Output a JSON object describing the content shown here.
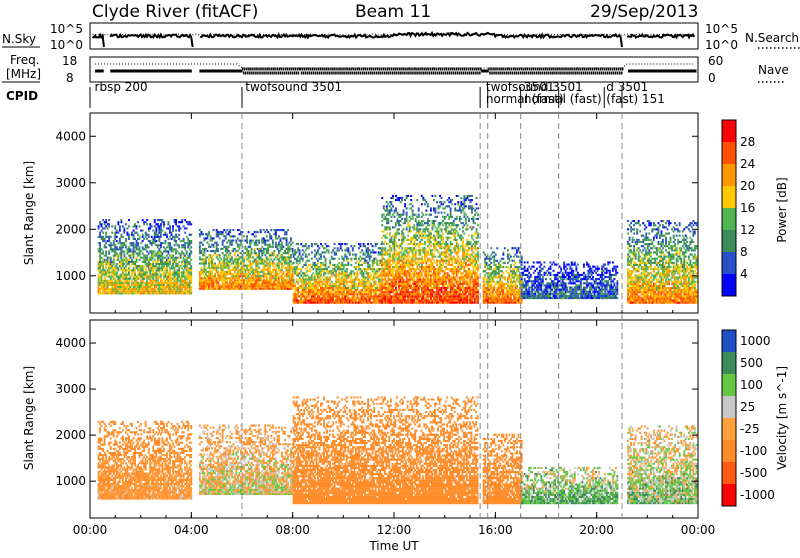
{
  "header": {
    "station": "Clyde River (fitACF)",
    "beam": "Beam 11",
    "date": "29/Sep/2013"
  },
  "noise_panel": {
    "left_label": "N.Sky",
    "left_ticks": [
      "10^5",
      "10^0"
    ],
    "right_label": "N.Search",
    "right_ticks": [
      "10^5",
      "10^0"
    ]
  },
  "freq_panel": {
    "left_label_1": "Freq.",
    "left_label_2": "[MHz]",
    "left_ticks": [
      "18",
      "8"
    ],
    "right_label": "Nave",
    "right_ticks": [
      "60",
      "0"
    ]
  },
  "cpid": {
    "label": "CPID",
    "programs": [
      {
        "name": "rbsp 200",
        "start_hour": 0.0
      },
      {
        "name": "twofsound 3501",
        "start_hour": 6.0
      },
      {
        "name": "twofsound 3501",
        "start_hour": 15.5
      },
      {
        "name": "normal (fast) 151",
        "start_hour": 15.5
      },
      {
        "name": "normal (fast) 151",
        "start_hour": 17.0
      },
      {
        "name": "twofsound 3501",
        "start_hour": 17.0
      },
      {
        "name": "normal (fast) 151",
        "start_hour": 18.5
      },
      {
        "name": "twofsound 3501",
        "start_hour": 20.0
      },
      {
        "name": "normal (fast) 151",
        "start_hour": 21.0
      }
    ],
    "visible_labels": [
      {
        "text": "rbsp 200",
        "hour": 0.1
      },
      {
        "text": "twofsound 3501",
        "hour": 6.05
      },
      {
        "text": "twofsound 3501",
        "hour": 15.55
      },
      {
        "text": "normal (fast)",
        "hour": 15.55
      },
      {
        "text": "normal (fast)",
        "hour": 17.05
      },
      {
        "text": "3501",
        "hour": 17.05
      },
      {
        "text": "d 3501",
        "hour": 20.3
      },
      {
        "text": "(fast) 151",
        "hour": 20.3
      }
    ]
  },
  "colors": {
    "power_scale": [
      "#0000ff",
      "#2850c8",
      "#3c8c5a",
      "#50b450",
      "#ffc800",
      "#ff9600",
      "#ff5000",
      "#ff0000"
    ],
    "velocity_scale": [
      "#2050c8",
      "#3c8c5a",
      "#64c846",
      "#c8c8c8",
      "#ffa03c",
      "#ff8c28",
      "#ff5a14",
      "#ff0000"
    ]
  },
  "chart_data": [
    {
      "type": "heatmap",
      "title": "",
      "panel": "power",
      "xlabel": "",
      "ylabel": "Slant Range [km]",
      "xlim": [
        0,
        24
      ],
      "ylim": [
        200,
        4500
      ],
      "x_ticks": [
        "00:00",
        "04:00",
        "08:00",
        "12:00",
        "16:00",
        "20:00",
        "00:00"
      ],
      "y_ticks": [
        "1000",
        "2000",
        "3000",
        "4000"
      ],
      "colorbar": {
        "label": "Power [dB]",
        "ticks": [
          "4",
          "8",
          "12",
          "16",
          "20",
          "24",
          "28"
        ],
        "range": [
          0,
          30
        ]
      },
      "bands": [
        {
          "t0": 0.3,
          "t1": 4.0,
          "r0": 600,
          "r1": 2200,
          "value": 18
        },
        {
          "t0": 4.3,
          "t1": 8.0,
          "r0": 700,
          "r1": 2000,
          "value": 22
        },
        {
          "t0": 8.0,
          "t1": 11.5,
          "r0": 400,
          "r1": 1700,
          "value": 24
        },
        {
          "t0": 11.5,
          "t1": 15.3,
          "r0": 400,
          "r1": 2700,
          "value": 26
        },
        {
          "t0": 15.5,
          "t1": 17.0,
          "r0": 400,
          "r1": 1600,
          "value": 24
        },
        {
          "t0": 17.0,
          "t1": 20.8,
          "r0": 500,
          "r1": 1300,
          "value": 8
        },
        {
          "t0": 21.2,
          "t1": 23.9,
          "r0": 400,
          "r1": 2200,
          "value": 22
        }
      ]
    },
    {
      "type": "heatmap",
      "title": "",
      "panel": "velocity",
      "xlabel": "Time UT",
      "ylabel": "Slant Range [km]",
      "xlim": [
        0,
        24
      ],
      "ylim": [
        200,
        4500
      ],
      "x_ticks": [
        "00:00",
        "04:00",
        "08:00",
        "12:00",
        "16:00",
        "20:00",
        "00:00"
      ],
      "y_ticks": [
        "1000",
        "2000",
        "3000",
        "4000"
      ],
      "colorbar": {
        "label": "Velocity [m s^-1]",
        "ticks": [
          "1000",
          "500",
          "100",
          "25",
          "-25",
          "-100",
          "-500",
          "-1000"
        ],
        "range": [
          -1000,
          1000
        ]
      },
      "bands": [
        {
          "t0": 0.3,
          "t1": 4.0,
          "r0": 600,
          "r1": 2300,
          "value": -100
        },
        {
          "t0": 4.3,
          "t1": 8.0,
          "r0": 700,
          "r1": 2200,
          "value": 0
        },
        {
          "t0": 8.0,
          "t1": 15.3,
          "r0": 500,
          "r1": 2800,
          "value": -300
        },
        {
          "t0": 15.5,
          "t1": 17.0,
          "r0": 500,
          "r1": 2000,
          "value": -200
        },
        {
          "t0": 17.0,
          "t1": 20.8,
          "r0": 500,
          "r1": 1300,
          "value": 100
        },
        {
          "t0": 21.2,
          "t1": 23.9,
          "r0": 500,
          "r1": 2200,
          "value": 50
        }
      ]
    }
  ]
}
